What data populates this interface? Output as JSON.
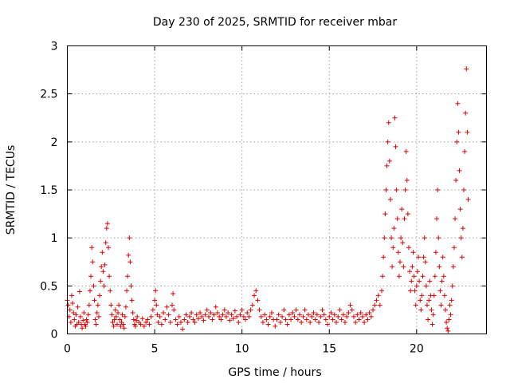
{
  "chart_data": {
    "type": "scatter",
    "title": "Day 230 of 2025, SRMTID for receiver mbar",
    "xlabel": "GPS time / hours",
    "ylabel": "SRMTID / TECUs",
    "xlim": [
      0,
      24
    ],
    "ylim": [
      0,
      3
    ],
    "xticks": [
      0,
      5,
      10,
      15,
      20
    ],
    "xtick_labels": [
      "0",
      "5",
      "10",
      "15",
      "20"
    ],
    "yticks": [
      0,
      0.5,
      1,
      1.5,
      2,
      2.5,
      3
    ],
    "ytick_labels": [
      "0",
      "0.5",
      "1",
      "1.5",
      "2",
      "2.5",
      "3"
    ],
    "grid": true,
    "marker": "+",
    "color": "#e00000",
    "series": [
      {
        "name": "SRMTID",
        "points": [
          [
            0.0,
            0.35
          ],
          [
            0.05,
            0.3
          ],
          [
            0.1,
            0.18
          ],
          [
            0.15,
            0.25
          ],
          [
            0.2,
            0.12
          ],
          [
            0.25,
            0.4
          ],
          [
            0.3,
            0.32
          ],
          [
            0.35,
            0.22
          ],
          [
            0.4,
            0.15
          ],
          [
            0.45,
            0.08
          ],
          [
            0.5,
            0.2
          ],
          [
            0.55,
            0.1
          ],
          [
            0.6,
            0.28
          ],
          [
            0.65,
            0.12
          ],
          [
            0.7,
            0.44
          ],
          [
            0.75,
            0.18
          ],
          [
            0.8,
            0.1
          ],
          [
            0.85,
            0.06
          ],
          [
            0.9,
            0.14
          ],
          [
            0.95,
            0.22
          ],
          [
            1.0,
            0.1
          ],
          [
            1.05,
            0.08
          ],
          [
            1.1,
            0.15
          ],
          [
            1.15,
            0.12
          ],
          [
            1.2,
            0.2
          ],
          [
            1.25,
            0.3
          ],
          [
            1.3,
            0.45
          ],
          [
            1.35,
            0.6
          ],
          [
            1.4,
            0.9
          ],
          [
            1.45,
            0.75
          ],
          [
            1.5,
            0.5
          ],
          [
            1.55,
            0.35
          ],
          [
            1.6,
            0.15
          ],
          [
            1.65,
            0.1
          ],
          [
            1.7,
            0.22
          ],
          [
            1.75,
            0.3
          ],
          [
            1.8,
            0.18
          ],
          [
            1.85,
            0.4
          ],
          [
            1.9,
            0.55
          ],
          [
            1.95,
            0.7
          ],
          [
            2.0,
            0.85
          ],
          [
            2.05,
            0.65
          ],
          [
            2.1,
            0.5
          ],
          [
            2.15,
            0.72
          ],
          [
            2.2,
            0.95
          ],
          [
            2.25,
            1.1
          ],
          [
            2.3,
            1.15
          ],
          [
            2.35,
            0.9
          ],
          [
            2.4,
            0.6
          ],
          [
            2.45,
            0.45
          ],
          [
            2.5,
            0.3
          ],
          [
            2.55,
            0.2
          ],
          [
            2.6,
            0.12
          ],
          [
            2.65,
            0.08
          ],
          [
            2.7,
            0.15
          ],
          [
            2.75,
            0.25
          ],
          [
            2.8,
            0.18
          ],
          [
            2.85,
            0.1
          ],
          [
            2.9,
            0.22
          ],
          [
            2.95,
            0.3
          ],
          [
            3.0,
            0.15
          ],
          [
            3.05,
            0.08
          ],
          [
            3.1,
            0.12
          ],
          [
            3.15,
            0.2
          ],
          [
            3.2,
            0.1
          ],
          [
            3.25,
            0.06
          ],
          [
            3.3,
            0.18
          ],
          [
            3.35,
            0.28
          ],
          [
            3.4,
            0.45
          ],
          [
            3.45,
            0.6
          ],
          [
            3.5,
            0.82
          ],
          [
            3.55,
            1.0
          ],
          [
            3.6,
            0.75
          ],
          [
            3.65,
            0.5
          ],
          [
            3.7,
            0.35
          ],
          [
            3.75,
            0.22
          ],
          [
            3.8,
            0.15
          ],
          [
            3.85,
            0.1
          ],
          [
            3.9,
            0.08
          ],
          [
            3.95,
            0.14
          ],
          [
            4.0,
            0.18
          ],
          [
            4.1,
            0.12
          ],
          [
            4.2,
            0.1
          ],
          [
            4.3,
            0.16
          ],
          [
            4.4,
            0.08
          ],
          [
            4.5,
            0.12
          ],
          [
            4.6,
            0.15
          ],
          [
            4.7,
            0.1
          ],
          [
            4.8,
            0.18
          ],
          [
            4.9,
            0.25
          ],
          [
            5.0,
            0.35
          ],
          [
            5.05,
            0.45
          ],
          [
            5.1,
            0.3
          ],
          [
            5.15,
            0.2
          ],
          [
            5.2,
            0.12
          ],
          [
            5.3,
            0.18
          ],
          [
            5.4,
            0.1
          ],
          [
            5.5,
            0.22
          ],
          [
            5.6,
            0.15
          ],
          [
            5.7,
            0.28
          ],
          [
            5.8,
            0.2
          ],
          [
            5.9,
            0.12
          ],
          [
            6.0,
            0.3
          ],
          [
            6.05,
            0.42
          ],
          [
            6.1,
            0.25
          ],
          [
            6.2,
            0.15
          ],
          [
            6.3,
            0.1
          ],
          [
            6.4,
            0.18
          ],
          [
            6.5,
            0.12
          ],
          [
            6.6,
            0.05
          ],
          [
            6.7,
            0.15
          ],
          [
            6.8,
            0.2
          ],
          [
            6.9,
            0.12
          ],
          [
            7.0,
            0.18
          ],
          [
            7.1,
            0.22
          ],
          [
            7.2,
            0.15
          ],
          [
            7.3,
            0.12
          ],
          [
            7.4,
            0.2
          ],
          [
            7.5,
            0.16
          ],
          [
            7.6,
            0.22
          ],
          [
            7.7,
            0.18
          ],
          [
            7.8,
            0.14
          ],
          [
            7.9,
            0.2
          ],
          [
            8.0,
            0.25
          ],
          [
            8.1,
            0.18
          ],
          [
            8.2,
            0.22
          ],
          [
            8.3,
            0.15
          ],
          [
            8.4,
            0.2
          ],
          [
            8.5,
            0.28
          ],
          [
            8.6,
            0.22
          ],
          [
            8.7,
            0.18
          ],
          [
            8.8,
            0.15
          ],
          [
            8.9,
            0.2
          ],
          [
            9.0,
            0.25
          ],
          [
            9.1,
            0.18
          ],
          [
            9.2,
            0.22
          ],
          [
            9.3,
            0.14
          ],
          [
            9.4,
            0.2
          ],
          [
            9.5,
            0.16
          ],
          [
            9.6,
            0.24
          ],
          [
            9.7,
            0.18
          ],
          [
            9.8,
            0.12
          ],
          [
            9.9,
            0.2
          ],
          [
            10.0,
            0.25
          ],
          [
            10.1,
            0.18
          ],
          [
            10.2,
            0.15
          ],
          [
            10.3,
            0.22
          ],
          [
            10.4,
            0.18
          ],
          [
            10.5,
            0.25
          ],
          [
            10.6,
            0.3
          ],
          [
            10.7,
            0.4
          ],
          [
            10.8,
            0.45
          ],
          [
            10.9,
            0.35
          ],
          [
            11.0,
            0.25
          ],
          [
            11.1,
            0.18
          ],
          [
            11.2,
            0.12
          ],
          [
            11.3,
            0.2
          ],
          [
            11.4,
            0.15
          ],
          [
            11.5,
            0.1
          ],
          [
            11.6,
            0.18
          ],
          [
            11.7,
            0.22
          ],
          [
            11.8,
            0.15
          ],
          [
            11.9,
            0.08
          ],
          [
            12.0,
            0.15
          ],
          [
            12.1,
            0.2
          ],
          [
            12.2,
            0.12
          ],
          [
            12.3,
            0.18
          ],
          [
            12.4,
            0.25
          ],
          [
            12.5,
            0.15
          ],
          [
            12.6,
            0.1
          ],
          [
            12.7,
            0.2
          ],
          [
            12.8,
            0.15
          ],
          [
            12.9,
            0.22
          ],
          [
            13.0,
            0.18
          ],
          [
            13.1,
            0.25
          ],
          [
            13.2,
            0.15
          ],
          [
            13.3,
            0.2
          ],
          [
            13.4,
            0.12
          ],
          [
            13.5,
            0.18
          ],
          [
            13.6,
            0.25
          ],
          [
            13.7,
            0.15
          ],
          [
            13.8,
            0.2
          ],
          [
            13.9,
            0.12
          ],
          [
            14.0,
            0.18
          ],
          [
            14.1,
            0.22
          ],
          [
            14.2,
            0.15
          ],
          [
            14.3,
            0.2
          ],
          [
            14.4,
            0.12
          ],
          [
            14.5,
            0.18
          ],
          [
            14.6,
            0.25
          ],
          [
            14.7,
            0.2
          ],
          [
            14.8,
            0.15
          ],
          [
            14.9,
            0.1
          ],
          [
            15.0,
            0.18
          ],
          [
            15.1,
            0.22
          ],
          [
            15.2,
            0.15
          ],
          [
            15.3,
            0.2
          ],
          [
            15.4,
            0.12
          ],
          [
            15.5,
            0.18
          ],
          [
            15.6,
            0.25
          ],
          [
            15.7,
            0.15
          ],
          [
            15.8,
            0.2
          ],
          [
            15.9,
            0.12
          ],
          [
            16.0,
            0.18
          ],
          [
            16.1,
            0.22
          ],
          [
            16.2,
            0.3
          ],
          [
            16.3,
            0.25
          ],
          [
            16.4,
            0.18
          ],
          [
            16.5,
            0.12
          ],
          [
            16.6,
            0.2
          ],
          [
            16.7,
            0.15
          ],
          [
            16.8,
            0.22
          ],
          [
            16.9,
            0.18
          ],
          [
            17.0,
            0.12
          ],
          [
            17.1,
            0.2
          ],
          [
            17.2,
            0.15
          ],
          [
            17.3,
            0.22
          ],
          [
            17.4,
            0.18
          ],
          [
            17.5,
            0.25
          ],
          [
            17.6,
            0.3
          ],
          [
            17.7,
            0.35
          ],
          [
            17.8,
            0.4
          ],
          [
            17.9,
            0.3
          ],
          [
            18.0,
            0.45
          ],
          [
            18.05,
            0.6
          ],
          [
            18.1,
            0.8
          ],
          [
            18.15,
            1.0
          ],
          [
            18.2,
            1.25
          ],
          [
            18.25,
            1.5
          ],
          [
            18.3,
            1.75
          ],
          [
            18.35,
            2.0
          ],
          [
            18.4,
            2.2
          ],
          [
            18.45,
            1.8
          ],
          [
            18.5,
            1.4
          ],
          [
            18.55,
            1.0
          ],
          [
            18.6,
            0.7
          ],
          [
            18.65,
            0.9
          ],
          [
            18.7,
            1.1
          ],
          [
            18.75,
            2.25
          ],
          [
            18.8,
            1.95
          ],
          [
            18.85,
            1.5
          ],
          [
            18.9,
            1.2
          ],
          [
            18.95,
            0.85
          ],
          [
            19.0,
            0.6
          ],
          [
            19.05,
            0.75
          ],
          [
            19.1,
            1.0
          ],
          [
            19.15,
            1.3
          ],
          [
            19.2,
            0.95
          ],
          [
            19.25,
            0.7
          ],
          [
            19.3,
            1.2
          ],
          [
            19.35,
            1.5
          ],
          [
            19.4,
            1.9
          ],
          [
            19.45,
            1.6
          ],
          [
            19.5,
            1.25
          ],
          [
            19.55,
            0.9
          ],
          [
            19.6,
            0.65
          ],
          [
            19.65,
            0.45
          ],
          [
            19.7,
            0.55
          ],
          [
            19.75,
            0.7
          ],
          [
            19.8,
            0.85
          ],
          [
            19.85,
            0.6
          ],
          [
            19.9,
            0.45
          ],
          [
            19.95,
            0.3
          ],
          [
            20.0,
            0.5
          ],
          [
            20.05,
            0.65
          ],
          [
            20.1,
            0.8
          ],
          [
            20.15,
            0.55
          ],
          [
            20.2,
            0.35
          ],
          [
            20.25,
            0.25
          ],
          [
            20.3,
            0.4
          ],
          [
            20.35,
            0.6
          ],
          [
            20.4,
            0.8
          ],
          [
            20.45,
            1.0
          ],
          [
            20.5,
            0.75
          ],
          [
            20.55,
            0.5
          ],
          [
            20.6,
            0.3
          ],
          [
            20.65,
            0.15
          ],
          [
            20.7,
            0.35
          ],
          [
            20.75,
            0.55
          ],
          [
            20.8,
            0.4
          ],
          [
            20.85,
            0.25
          ],
          [
            20.9,
            0.1
          ],
          [
            20.95,
            0.2
          ],
          [
            21.0,
            0.4
          ],
          [
            21.05,
            0.6
          ],
          [
            21.1,
            0.85
          ],
          [
            21.15,
            1.2
          ],
          [
            21.2,
            1.5
          ],
          [
            21.25,
            1.0
          ],
          [
            21.3,
            0.7
          ],
          [
            21.35,
            0.45
          ],
          [
            21.4,
            0.3
          ],
          [
            21.45,
            0.55
          ],
          [
            21.5,
            0.8
          ],
          [
            21.55,
            0.6
          ],
          [
            21.6,
            0.4
          ],
          [
            21.65,
            0.25
          ],
          [
            21.7,
            0.12
          ],
          [
            21.75,
            0.06
          ],
          [
            21.8,
            0.03
          ],
          [
            21.85,
            0.15
          ],
          [
            21.9,
            0.3
          ],
          [
            21.95,
            0.2
          ],
          [
            22.0,
            0.35
          ],
          [
            22.05,
            0.5
          ],
          [
            22.1,
            0.7
          ],
          [
            22.15,
            0.9
          ],
          [
            22.2,
            1.2
          ],
          [
            22.25,
            1.6
          ],
          [
            22.3,
            2.0
          ],
          [
            22.35,
            2.4
          ],
          [
            22.4,
            2.1
          ],
          [
            22.45,
            1.7
          ],
          [
            22.5,
            1.3
          ],
          [
            22.55,
            1.0
          ],
          [
            22.6,
            0.8
          ],
          [
            22.65,
            1.1
          ],
          [
            22.7,
            1.5
          ],
          [
            22.75,
            1.9
          ],
          [
            22.8,
            2.3
          ],
          [
            22.85,
            2.76
          ],
          [
            22.9,
            2.1
          ],
          [
            22.95,
            1.4
          ]
        ]
      }
    ]
  }
}
